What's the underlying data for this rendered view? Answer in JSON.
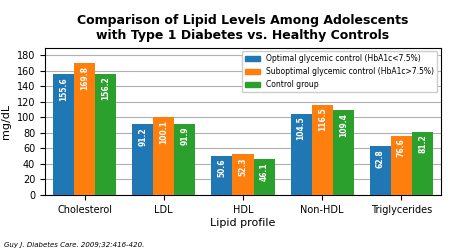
{
  "chart_data": {
    "type": "bar",
    "title": "Comparison of Lipid Levels Among Adolescents\nwith Type 1 Diabetes vs. Healthy Controls",
    "x_label": "Lipid profile",
    "y_label": "mg/dL",
    "categories": [
      "Cholesterol",
      "LDL",
      "HDL",
      "Non-HDL",
      "Triglycerides"
    ],
    "series": [
      {
        "name": "Optimal glycemic control (HbA1c<7.5%)",
        "values": [
          155.6,
          91.2,
          50.6,
          104.5,
          62.8
        ]
      },
      {
        "name": "Suboptimal glycemic control (HbA1c>7.5%)",
        "values": [
          169.8,
          100.1,
          52.3,
          116.5,
          76.6
        ]
      },
      {
        "name": "Control group",
        "values": [
          156.2,
          91.9,
          46.1,
          109.4,
          81.2
        ]
      }
    ],
    "ylim": [
      0,
      190
    ],
    "yticks": [
      0,
      20,
      40,
      60,
      80,
      100,
      120,
      140,
      160,
      180
    ],
    "grid": true,
    "legend": "upper right",
    "data_labels": true,
    "annotations": [
      "Guy J. Diabetes Care. 2009;32:416-420."
    ]
  }
}
